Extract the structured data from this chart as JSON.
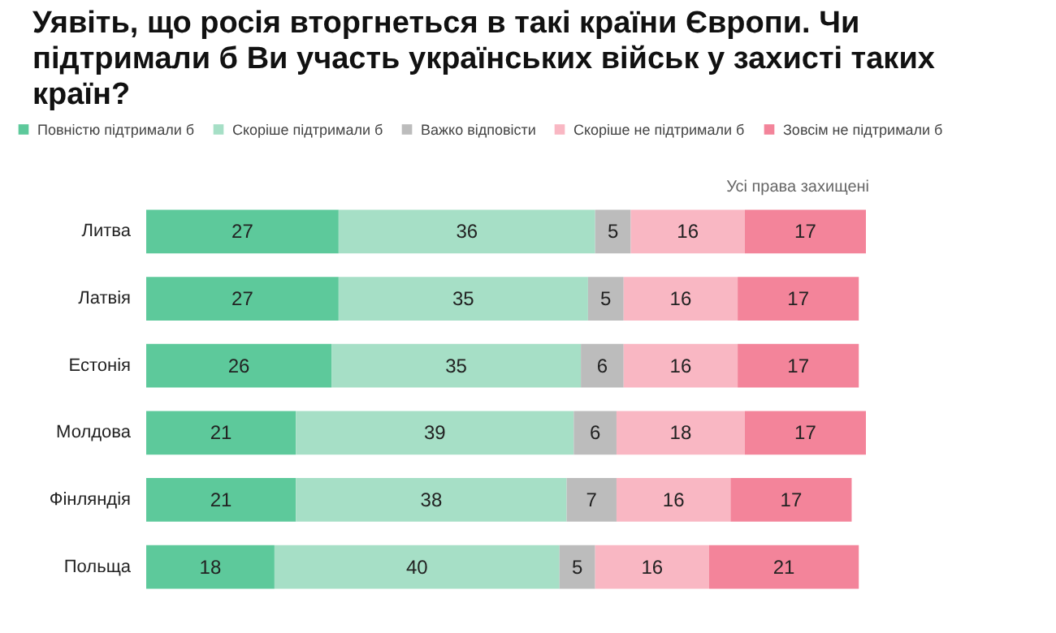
{
  "chart_data": {
    "type": "bar",
    "orientation": "horizontal",
    "stacked": true,
    "title": "Уявіть, що росія вторгнеться в такі країни Європи. Чи підтримали б Ви участь українських військ у захисті таких країн?",
    "annotations": [
      "Усі права захищені"
    ],
    "categories": [
      "Литва",
      "Латвія",
      "Естонія",
      "Молдова",
      "Фінляндія",
      "Польща"
    ],
    "series": [
      {
        "name": "Повністю підтримали б",
        "color": "#5dc99b",
        "values": [
          27,
          27,
          26,
          21,
          21,
          18
        ]
      },
      {
        "name": "Скоріше підтримали б",
        "color": "#a6dfc6",
        "values": [
          36,
          35,
          35,
          39,
          38,
          40
        ]
      },
      {
        "name": "Важко відповісти",
        "color": "#bcbcbc",
        "values": [
          5,
          5,
          6,
          6,
          7,
          5
        ]
      },
      {
        "name": "Скоріше не підтримали б",
        "color": "#f9b7c3",
        "values": [
          16,
          16,
          16,
          18,
          16,
          16
        ]
      },
      {
        "name": "Зовсім не підтримали б",
        "color": "#f3849a",
        "values": [
          17,
          17,
          17,
          17,
          17,
          21
        ]
      }
    ],
    "data_labels": true,
    "legend": "top"
  }
}
